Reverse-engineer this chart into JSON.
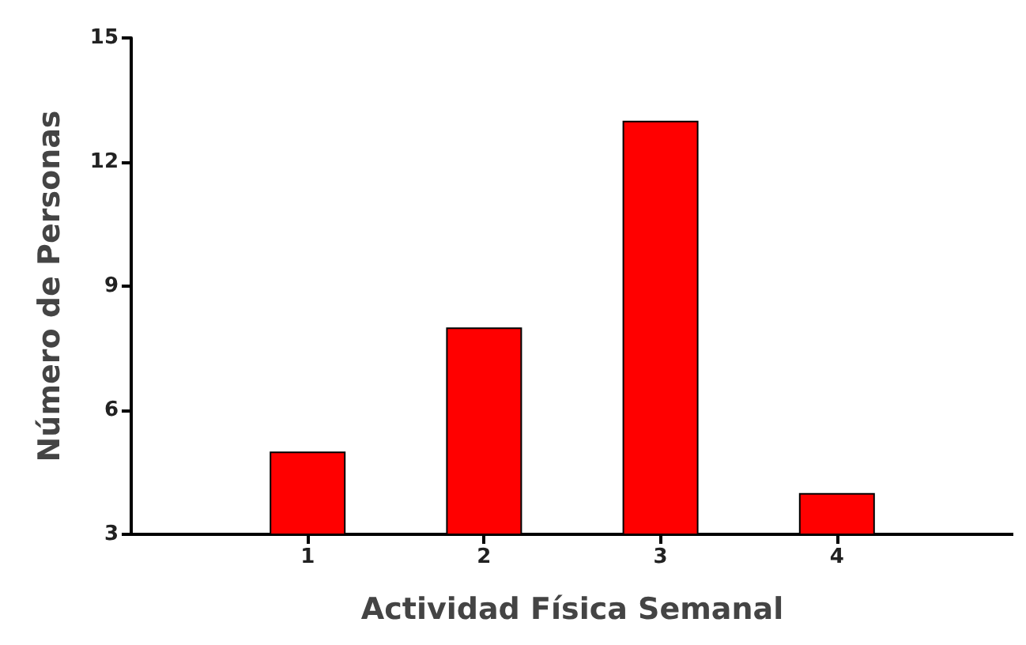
{
  "chart_data": {
    "type": "bar",
    "xlabel": "Actividad Física Semanal",
    "ylabel": "Número de Personas",
    "x": [
      1,
      2,
      3,
      4
    ],
    "values": [
      5,
      8,
      13,
      4
    ],
    "color": "#ff0000",
    "xlim": [
      0,
      5
    ],
    "xticks": [
      1,
      2,
      3,
      4
    ],
    "ylim": [
      3,
      15
    ],
    "yticks": [
      3,
      6,
      9,
      12,
      15
    ],
    "grid": false
  }
}
